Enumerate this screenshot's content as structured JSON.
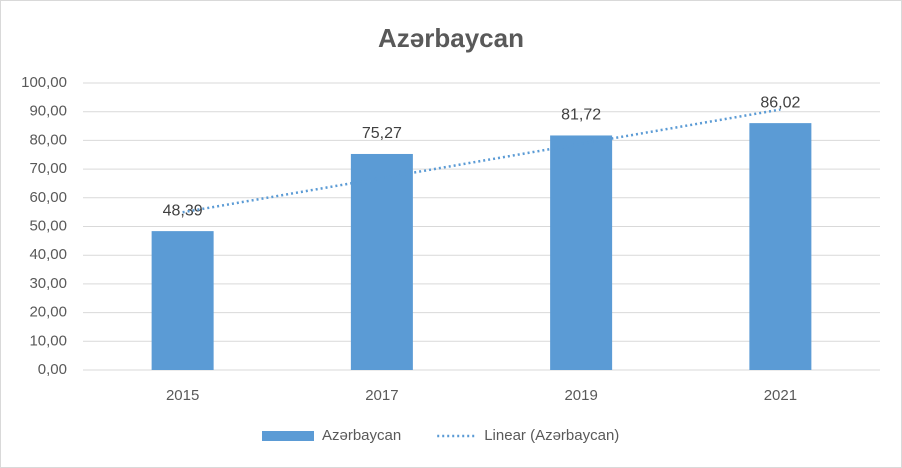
{
  "chart_data": {
    "type": "bar",
    "title": "Azərbaycan",
    "categories": [
      "2015",
      "2017",
      "2019",
      "2021"
    ],
    "series": [
      {
        "name": "Azərbaycan",
        "color": "#5b9bd5",
        "values": [
          48.39,
          75.27,
          81.72,
          86.02
        ],
        "value_labels": [
          "48,39",
          "75,27",
          "81,72",
          "86,02"
        ]
      },
      {
        "name": "Linear (Azərbaycan)",
        "type": "line",
        "color": "#5b9bd5",
        "dotted": true,
        "values": [
          54.95,
          66.88,
          78.82,
          90.75
        ]
      }
    ],
    "ylim": [
      0,
      100
    ],
    "yticks": [
      {
        "value": 0,
        "label": "0,00"
      },
      {
        "value": 10,
        "label": "10,00"
      },
      {
        "value": 20,
        "label": "20,00"
      },
      {
        "value": 30,
        "label": "30,00"
      },
      {
        "value": 40,
        "label": "40,00"
      },
      {
        "value": 50,
        "label": "50,00"
      },
      {
        "value": 60,
        "label": "60,00"
      },
      {
        "value": 70,
        "label": "70,00"
      },
      {
        "value": 80,
        "label": "80,00"
      },
      {
        "value": 90,
        "label": "90,00"
      },
      {
        "value": 100,
        "label": "100,00"
      }
    ],
    "grid": true,
    "legend": "bottom"
  }
}
